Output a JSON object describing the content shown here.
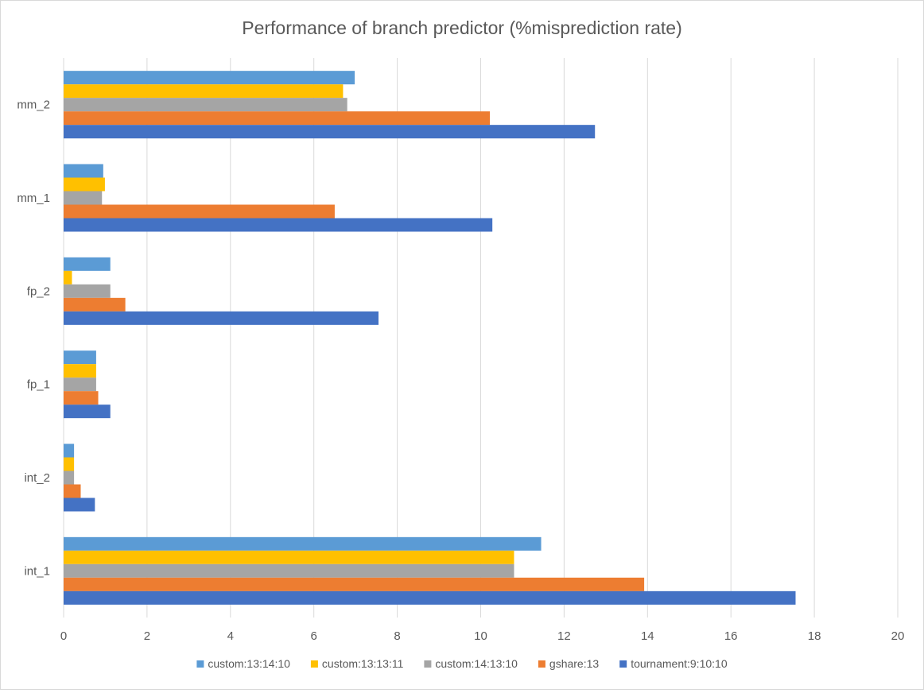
{
  "colors": {
    "custom:13:14:10": "#5b9bd5",
    "custom:13:13:11": "#ffc000",
    "custom:14:13:10": "#a5a5a5",
    "gshare:13": "#ed7d31",
    "tournament:9:10:10": "#4472c4",
    "grid": "#d9d9d9",
    "axis_text": "#595959",
    "title_text": "#595959"
  },
  "chart_data": {
    "type": "bar",
    "orientation": "horizontal",
    "title": "Performance of branch predictor (%misprediction rate)",
    "xlabel": "",
    "ylabel": "",
    "xlim": [
      0,
      20
    ],
    "x_ticks": [
      "0",
      "2",
      "4",
      "6",
      "8",
      "10",
      "12",
      "14",
      "16",
      "18",
      "20"
    ],
    "grid": true,
    "legend_position": "bottom",
    "categories": [
      "int_1",
      "int_2",
      "fp_1",
      "fp_2",
      "mm_1",
      "mm_2"
    ],
    "series": [
      {
        "name": "custom:13:14:10",
        "values": [
          11.45,
          0.25,
          0.78,
          1.12,
          0.95,
          6.98
        ]
      },
      {
        "name": "custom:13:13:11",
        "values": [
          10.8,
          0.25,
          0.78,
          0.2,
          0.99,
          6.7
        ]
      },
      {
        "name": "custom:14:13:10",
        "values": [
          10.8,
          0.25,
          0.78,
          1.12,
          0.92,
          6.8
        ]
      },
      {
        "name": "gshare:13",
        "values": [
          13.92,
          0.41,
          0.83,
          1.48,
          6.5,
          10.22
        ]
      },
      {
        "name": "tournament:9:10:10",
        "values": [
          17.55,
          0.75,
          1.12,
          7.55,
          10.28,
          12.74
        ]
      }
    ]
  }
}
